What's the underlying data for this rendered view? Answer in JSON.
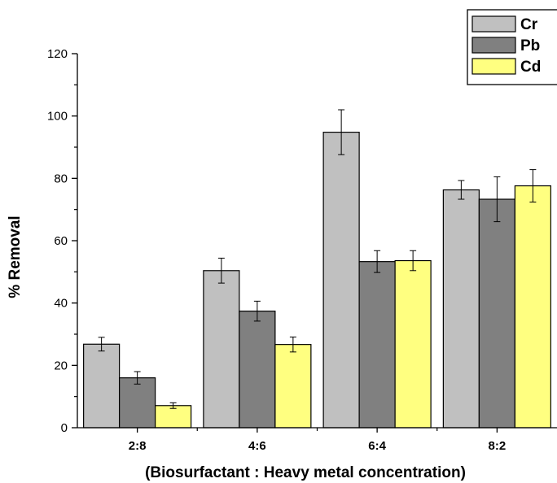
{
  "chart_data": {
    "type": "bar",
    "categories": [
      "2:8",
      "4:6",
      "6:4",
      "8:2"
    ],
    "series": [
      {
        "name": "Cr",
        "color": "#c0c0c0",
        "values": [
          26.8,
          50.4,
          94.8,
          76.3
        ],
        "errors": [
          2.2,
          4.0,
          7.2,
          3.0
        ]
      },
      {
        "name": "Pb",
        "color": "#808080",
        "values": [
          16.0,
          37.4,
          53.3,
          73.3
        ],
        "errors": [
          2.0,
          3.2,
          3.5,
          7.2
        ]
      },
      {
        "name": "Cd",
        "color": "#ffff80",
        "values": [
          7.1,
          26.7,
          53.6,
          77.6
        ],
        "errors": [
          0.9,
          2.4,
          3.2,
          5.2
        ]
      }
    ],
    "yticks": [
      "0",
      "20",
      "40",
      "60",
      "80",
      "100",
      "120"
    ],
    "ylim": [
      0,
      120
    ],
    "xlabel": "(Biosurfactant : Heavy metal concentration)",
    "ylabel": "% Removal",
    "legend_position": "top-right"
  }
}
